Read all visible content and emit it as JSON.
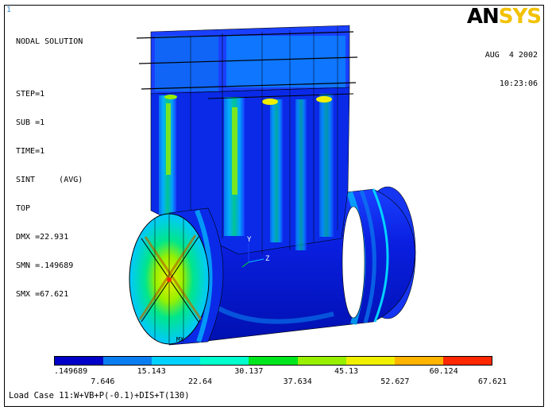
{
  "window_number": "1",
  "logo": {
    "an": "AN",
    "sys": "SYS"
  },
  "info_lines": [
    "NODAL SOLUTION",
    "",
    "STEP=1",
    "SUB =1",
    "TIME=1",
    "SINT     (AVG)",
    "TOP",
    "DMX =22.931",
    "SMN =.149689",
    "SMX =67.621"
  ],
  "date": "AUG  4 2002",
  "time": "10:23:06",
  "axis_labels": {
    "y": "Y",
    "z": "Z"
  },
  "model_marker": "MX",
  "legend": {
    "colors": [
      "#0000c8",
      "#0a7ef0",
      "#00d2ff",
      "#00ffcc",
      "#00e61e",
      "#96f000",
      "#f0f000",
      "#ffb400",
      "#ff2800"
    ],
    "labels_top": [
      ".149689",
      "15.143",
      "30.137",
      "45.13",
      "60.124"
    ],
    "labels_bottom": [
      "7.646",
      "22.64",
      "37.634",
      "52.627",
      "67.621"
    ]
  },
  "load_case": "Load Case 11:W+VB+P(-0.1)+DIS+T(130)"
}
